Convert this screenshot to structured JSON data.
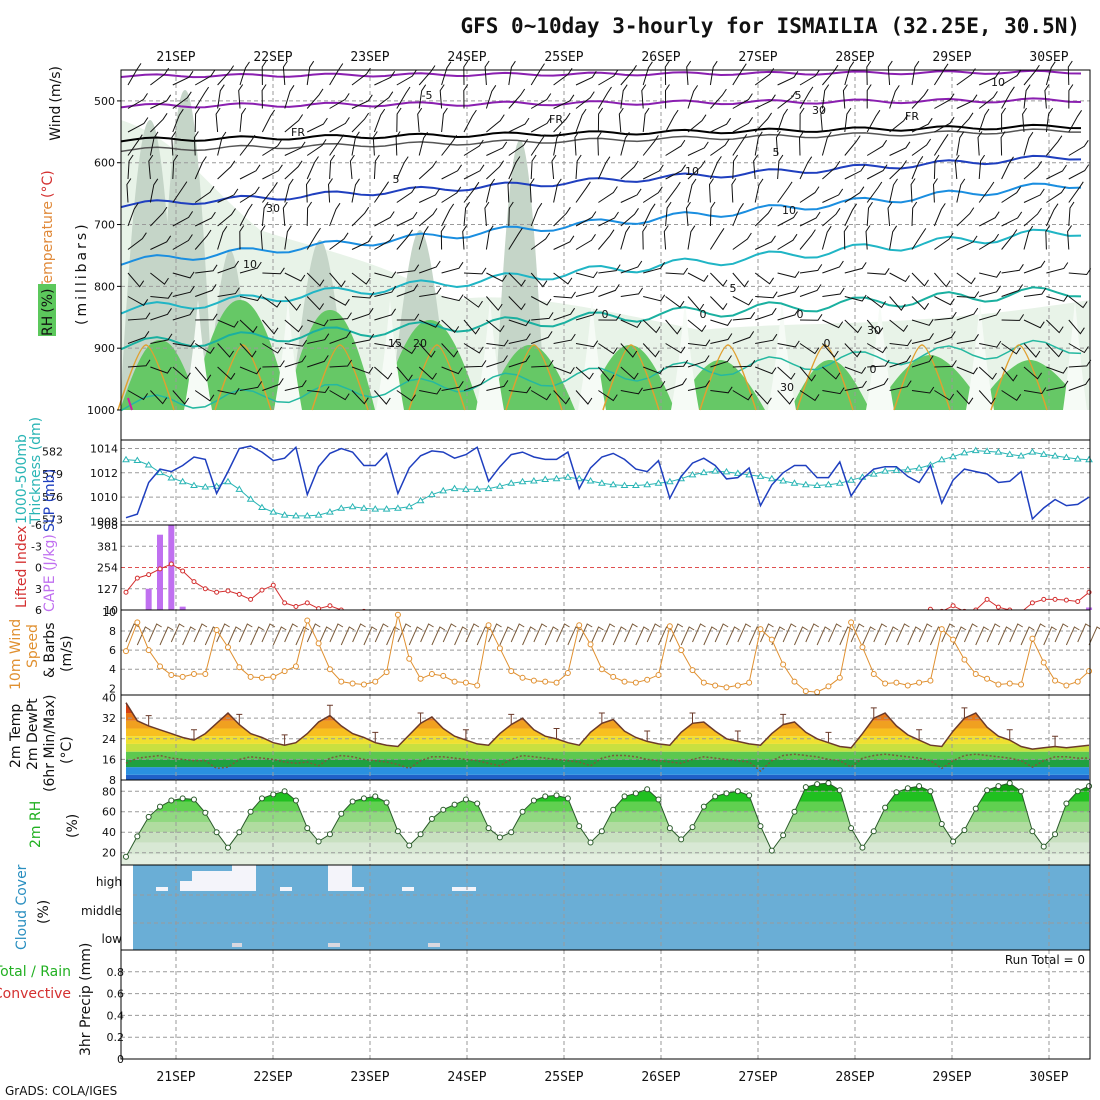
{
  "title": "GFS 0~10day 3-hourly for ISMAILIA (32.25E, 30.5N)",
  "dates": [
    "21SEP",
    "22SEP",
    "23SEP",
    "24SEP",
    "25SEP",
    "26SEP",
    "27SEP",
    "28SEP",
    "29SEP",
    "30SEP"
  ],
  "credit": "GrADS: COLA/IGES",
  "run_total": "Run Total = 0",
  "colors": {
    "rh_green": "#5cc85c",
    "slp": "#1f3fbf",
    "thickness": "#2ab5b5",
    "cape_bar": "#c070f0",
    "lifted": "#d43030",
    "wind": "#e09030",
    "cloud": "#6aaed6",
    "temp_line": "#6b3a2a",
    "dewpt_line": "#7a5a3a",
    "rh2m": "#22c022",
    "freezing": "#000000",
    "purple_iso": "#8a1fb0"
  },
  "chart_data": [
    {
      "panel": "upper-air cross section",
      "type": "heatmap",
      "ylabel_parts": [
        "Wind",
        "(m/s)",
        "Temperature",
        "(°C)",
        "RH",
        "(%)"
      ],
      "ylabel_right": "(millibars)",
      "yticks": [
        "500",
        "600",
        "700",
        "800",
        "900",
        "1000"
      ],
      "ylim": [
        1000,
        450
      ],
      "contour_labels": [
        "-5",
        "-5",
        "FR",
        "FR",
        "FR",
        "5",
        "5",
        "10",
        "10",
        "15",
        "20",
        "30",
        "10",
        "0",
        "0",
        "0",
        "5",
        "0",
        "0",
        "30",
        "30",
        "30",
        "10"
      ]
    },
    {
      "panel": "SLP and 1000-500mb thickness",
      "type": "line",
      "ylabel_left": [
        "1000-500mb",
        "Thickness (dm)"
      ],
      "ylabel_right": "SLP (mb)",
      "yticks_left": [
        "573",
        "576",
        "579",
        "582"
      ],
      "yticks_right": [
        "1008",
        "1010",
        "1012",
        "1014"
      ],
      "ylim_slp": [
        1007.7,
        1014.7
      ],
      "series": [
        {
          "name": "SLP",
          "values": [
            1008.3,
            1008.6,
            1011.2,
            1012.3,
            1012.1,
            1012.6,
            1013.3,
            1013.1,
            1010.3,
            1012.1,
            1014.0,
            1014.2,
            1013.7,
            1013.0,
            1013.2,
            1014.1,
            1010.2,
            1012.5,
            1013.6,
            1014.0,
            1013.7,
            1012.6,
            1012.6,
            1013.6,
            1010.3,
            1012.4,
            1013.4,
            1013.8,
            1013.7,
            1013.2,
            1013.5,
            1014.1,
            1011.3,
            1012.5,
            1013.5,
            1013.7,
            1013.3,
            1013.1,
            1013.1,
            1013.7,
            1010.7,
            1012.4,
            1013.3,
            1013.6,
            1013.1,
            1012.3,
            1012.1,
            1013.0,
            1009.9,
            1011.7,
            1012.8,
            1013.2,
            1012.6,
            1011.5,
            1011.6,
            1012.4,
            1009.3,
            1011.0,
            1012.0,
            1012.6,
            1012.6,
            1011.6,
            1011.6,
            1012.9,
            1010.1,
            1011.5,
            1012.3,
            1012.5,
            1012.5,
            1011.7,
            1011.2,
            1012.6,
            1009.5,
            1011.4,
            1012.3,
            1012.1,
            1011.9,
            1011.2,
            1011.3,
            1012.1,
            1008.2,
            1009.1,
            1009.8,
            1009.3,
            1009.4,
            1010.0
          ]
        },
        {
          "name": "Thickness",
          "values": [
            580.9,
            580.8,
            580.2,
            579.2,
            578.5,
            578.0,
            577.5,
            577.3,
            577.4,
            578.0,
            577.0,
            575.7,
            574.6,
            574.0,
            573.6,
            573.5,
            573.5,
            573.6,
            574.0,
            574.5,
            574.7,
            574.5,
            574.4,
            574.4,
            574.5,
            574.7,
            575.5,
            576.3,
            576.8,
            577.1,
            577.0,
            577.0,
            577.1,
            577.4,
            577.8,
            578.0,
            578.1,
            578.3,
            578.4,
            578.6,
            578.4,
            578.1,
            577.8,
            577.6,
            577.5,
            577.5,
            577.6,
            577.8,
            578.0,
            578.4,
            578.9,
            579.2,
            579.4,
            579.3,
            579.1,
            578.9,
            578.7,
            578.4,
            578.1,
            577.8,
            577.6,
            577.5,
            577.6,
            577.8,
            578.2,
            578.6,
            579.0,
            579.4,
            579.5,
            579.6,
            579.8,
            580.2,
            580.9,
            581.3,
            581.8,
            582.1,
            582.0,
            581.9,
            581.6,
            581.4,
            581.9,
            581.6,
            581.4,
            581.2,
            581.0,
            580.9
          ]
        }
      ]
    },
    {
      "panel": "CAPE and Lifted Index",
      "type": "bar",
      "ylabel_left": "Lifted Index",
      "ylabel_right": "CAPE (J/kg)",
      "yticks_left": [
        "-6",
        "-3",
        "0",
        "3",
        "6"
      ],
      "yticks_right": [
        "10",
        "127",
        "254",
        "381",
        "508"
      ],
      "series": [
        {
          "name": "CAPE",
          "values": [
            0,
            0,
            127,
            450,
            508,
            20,
            0,
            0,
            0,
            0,
            0,
            0,
            0,
            0,
            0,
            0,
            0,
            0,
            0,
            0,
            0,
            0,
            0,
            0,
            0,
            0,
            0,
            0,
            0,
            0,
            0,
            0,
            0,
            0,
            0,
            0,
            0,
            0,
            0,
            0,
            0,
            0,
            0,
            0,
            0,
            0,
            0,
            0,
            0,
            0,
            0,
            0,
            0,
            0,
            0,
            0,
            0,
            0,
            0,
            0,
            0,
            0,
            0,
            0,
            0,
            0,
            0,
            0,
            0,
            0,
            0,
            0,
            0,
            0,
            0,
            0,
            0,
            0,
            0,
            0,
            0,
            0,
            0,
            0,
            0,
            15
          ]
        },
        {
          "name": "Lifted Index",
          "values": [
            3.5,
            1.5,
            1.0,
            0.2,
            -0.5,
            0.5,
            2.0,
            3.0,
            3.5,
            3.3,
            3.8,
            4.5,
            3.2,
            2.5,
            5.0,
            5.5,
            5.0,
            5.8,
            5.4,
            6.0,
            6.5,
            6.2,
            6.5,
            7,
            7,
            7,
            7,
            7,
            6.3,
            7,
            7,
            7,
            7,
            7,
            7,
            7,
            7,
            7,
            7,
            7,
            7,
            7,
            7,
            7,
            7,
            7,
            7,
            7,
            7,
            7,
            7,
            7,
            7,
            7,
            7,
            7,
            7,
            7,
            7,
            7,
            7,
            7,
            7,
            7,
            7,
            6.5,
            7,
            7,
            7,
            7,
            6.3,
            5.9,
            6.2,
            5.4,
            6.2,
            6.0,
            4.5,
            5.6,
            6.0,
            6.3,
            5.0,
            4.5,
            4.5,
            4.6,
            4.8,
            3.5
          ]
        }
      ]
    },
    {
      "panel": "10m Wind",
      "type": "line",
      "ylabel": [
        "10m Wind",
        "Speed",
        "& Barbs",
        "(m/s)"
      ],
      "yticks": [
        "2",
        "4",
        "6",
        "8",
        "10"
      ],
      "ylim": [
        1.3,
        10.2
      ],
      "series": [
        {
          "name": "Speed",
          "values": [
            5.9,
            8.9,
            6.0,
            4.3,
            3.4,
            3.2,
            3.5,
            3.5,
            8.1,
            6.3,
            4.2,
            3.2,
            3.1,
            3.2,
            3.8,
            4.3,
            9.1,
            6.7,
            4.0,
            2.7,
            2.5,
            2.4,
            2.7,
            3.7,
            9.7,
            5.1,
            3.0,
            3.5,
            3.3,
            2.7,
            2.6,
            2.3,
            8.6,
            6.2,
            3.8,
            3.1,
            2.8,
            2.7,
            2.6,
            3.6,
            8.6,
            6.6,
            4.0,
            3.2,
            2.7,
            2.6,
            2.9,
            3.4,
            8.5,
            6.0,
            3.9,
            2.6,
            2.3,
            2.1,
            2.3,
            2.6,
            8.2,
            7.1,
            4.5,
            2.7,
            1.7,
            1.6,
            2.2,
            3.1,
            8.9,
            6.3,
            3.5,
            2.5,
            2.6,
            2.3,
            2.6,
            2.8,
            8.2,
            7.1,
            5.0,
            3.5,
            3.0,
            2.4,
            2.5,
            2.4,
            7.2,
            4.7,
            2.8,
            2.3,
            2.7,
            3.8
          ]
        }
      ]
    },
    {
      "panel": "2m Temp and DewPt",
      "type": "area",
      "ylabel": [
        "2m Temp",
        "2m DewPt",
        "(6hr Min/Max)",
        "(°C)"
      ],
      "yticks": [
        "8",
        "16",
        "24",
        "32",
        "40"
      ],
      "ylim": [
        8,
        40
      ],
      "series": [
        {
          "name": "2m Temp",
          "values": [
            38.0,
            31.0,
            29.0,
            27.5,
            26.0,
            24.5,
            23.5,
            26.0,
            30.0,
            34.0,
            29.5,
            26.0,
            24.5,
            22.5,
            21.5,
            22.5,
            26.0,
            30.5,
            33.0,
            29.0,
            26.0,
            24.5,
            22.5,
            21.5,
            21.0,
            25.5,
            30.0,
            32.5,
            28.0,
            25.0,
            23.5,
            22.0,
            21.5,
            26.0,
            29.5,
            32.0,
            27.5,
            25.0,
            24.0,
            22.5,
            21.5,
            26.5,
            30.0,
            31.5,
            27.0,
            24.5,
            23.0,
            22.0,
            21.5,
            26.5,
            30.0,
            30.5,
            27.0,
            24.0,
            23.0,
            22.0,
            21.5,
            26.0,
            29.5,
            30.5,
            26.5,
            24.0,
            22.5,
            21.0,
            20.5,
            26.0,
            32.0,
            34.0,
            29.0,
            25.5,
            23.5,
            21.5,
            21.0,
            27.0,
            32.0,
            34.0,
            28.5,
            25.0,
            23.5,
            21.0,
            20.0,
            20.5,
            21.0,
            20.5,
            21.0,
            21.5
          ]
        },
        {
          "name": "2m DewPt",
          "values": [
            14.5,
            16.5,
            17.0,
            17.5,
            16.5,
            16.0,
            15.5,
            15.5,
            12.5,
            13.0,
            16.0,
            17.0,
            16.5,
            16.0,
            15.0,
            14.5,
            15.0,
            13.5,
            16.5,
            17.5,
            17.0,
            16.0,
            15.5,
            15.0,
            14.0,
            12.5,
            15.5,
            17.0,
            17.0,
            16.5,
            16.0,
            15.5,
            14.5,
            13.5,
            16.0,
            17.5,
            17.0,
            16.5,
            16.0,
            15.5,
            15.0,
            13.5,
            16.5,
            17.5,
            17.5,
            17.0,
            16.0,
            15.5,
            15.0,
            14.5,
            16.0,
            17.0,
            16.5,
            16.0,
            15.5,
            15.0,
            11.5,
            15.5,
            17.5,
            18.0,
            17.5,
            17.0,
            16.0,
            15.5,
            13.0,
            16.5,
            17.5,
            18.0,
            17.5,
            17.0,
            16.5,
            15.5,
            12.5,
            15.5,
            17.5,
            18.0,
            17.5,
            17.0,
            16.5,
            15.5,
            13.0,
            15.5,
            17.0,
            17.0,
            16.5,
            16.5
          ]
        }
      ]
    },
    {
      "panel": "2m RH",
      "type": "area",
      "ylabel": [
        "2m RH",
        "(%)"
      ],
      "yticks": [
        "20",
        "40",
        "60",
        "80"
      ],
      "ylim": [
        8,
        90
      ],
      "series": [
        {
          "name": "2m RH",
          "values": [
            16,
            36,
            55,
            65,
            71,
            73,
            72,
            59,
            40,
            25,
            40,
            60,
            73,
            77,
            80,
            71,
            44,
            31,
            38,
            58,
            70,
            73,
            75,
            69,
            41,
            27,
            38,
            53,
            62,
            67,
            72,
            68,
            44,
            35,
            40,
            60,
            71,
            75,
            76,
            73,
            46,
            30,
            41,
            62,
            75,
            78,
            82,
            72,
            44,
            33,
            45,
            65,
            75,
            78,
            80,
            76,
            46,
            22,
            37,
            60,
            84,
            87,
            88,
            81,
            44,
            25,
            41,
            64,
            79,
            83,
            85,
            80,
            48,
            31,
            42,
            63,
            81,
            85,
            88,
            80,
            41,
            26,
            38,
            68,
            80,
            85
          ]
        }
      ]
    },
    {
      "panel": "Cloud Cover",
      "type": "area",
      "ylabel": [
        "Cloud Cover",
        "(%)"
      ],
      "yticks": [
        "high",
        "middle",
        "low"
      ]
    },
    {
      "panel": "3hr Precip",
      "type": "bar",
      "ylabel_left": [
        "Total / Rain",
        "Convective"
      ],
      "ylabel_right": "3hr Precip (mm)",
      "yticks": [
        "0",
        "0.2",
        "0.4",
        "0.6",
        "0.8"
      ],
      "ylim": [
        0,
        1
      ],
      "values": []
    }
  ]
}
